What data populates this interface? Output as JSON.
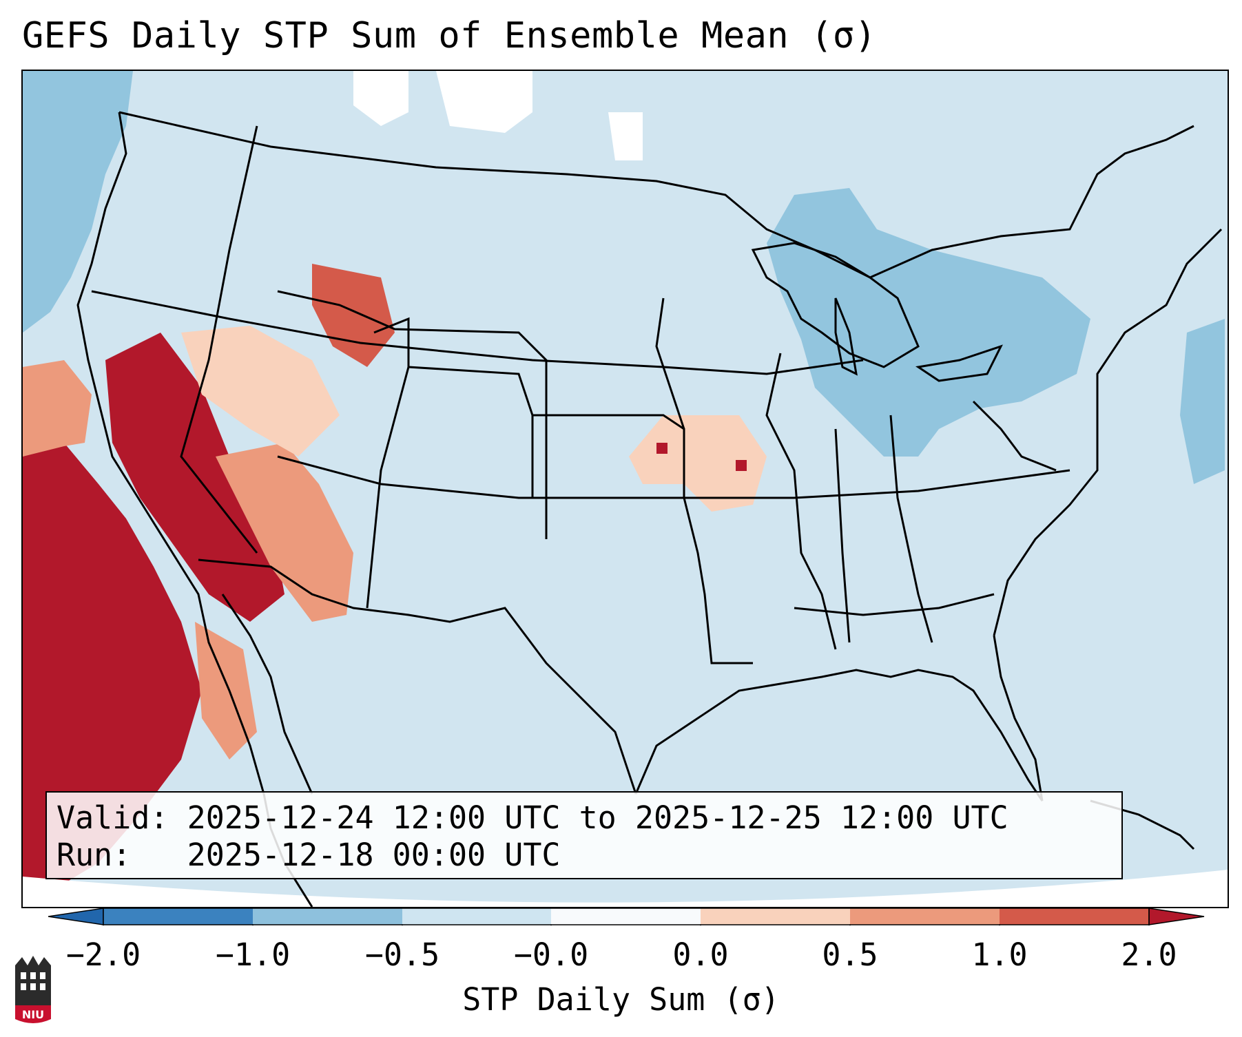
{
  "title": "GEFS Daily STP Sum of Ensemble Mean (σ)",
  "info": {
    "valid_label": "Valid:",
    "valid_value": "2025-12-24 12:00 UTC to 2025-12-25 12:00 UTC",
    "run_label": "Run:",
    "run_value": "2025-12-18 00:00 UTC"
  },
  "colorbar": {
    "label": "STP Daily Sum (σ)",
    "ticks": [
      "−2.0",
      "−1.0",
      "−0.5",
      "−0.0",
      "0.0",
      "0.5",
      "1.0",
      "2.0"
    ],
    "colors": [
      "#3b82bf",
      "#8ec1dd",
      "#cfe5f1",
      "#f8fafc",
      "#f9d2bc",
      "#ec9a7c",
      "#d45a4a",
      "#b2182b"
    ],
    "extend": "both"
  },
  "map": {
    "background_color": "#d1e5f0",
    "ocean_negative_color": "#92c5de",
    "strong_positive_color": "#b2182b",
    "boundary_color": "#000000"
  },
  "logo_text": "NIU"
}
